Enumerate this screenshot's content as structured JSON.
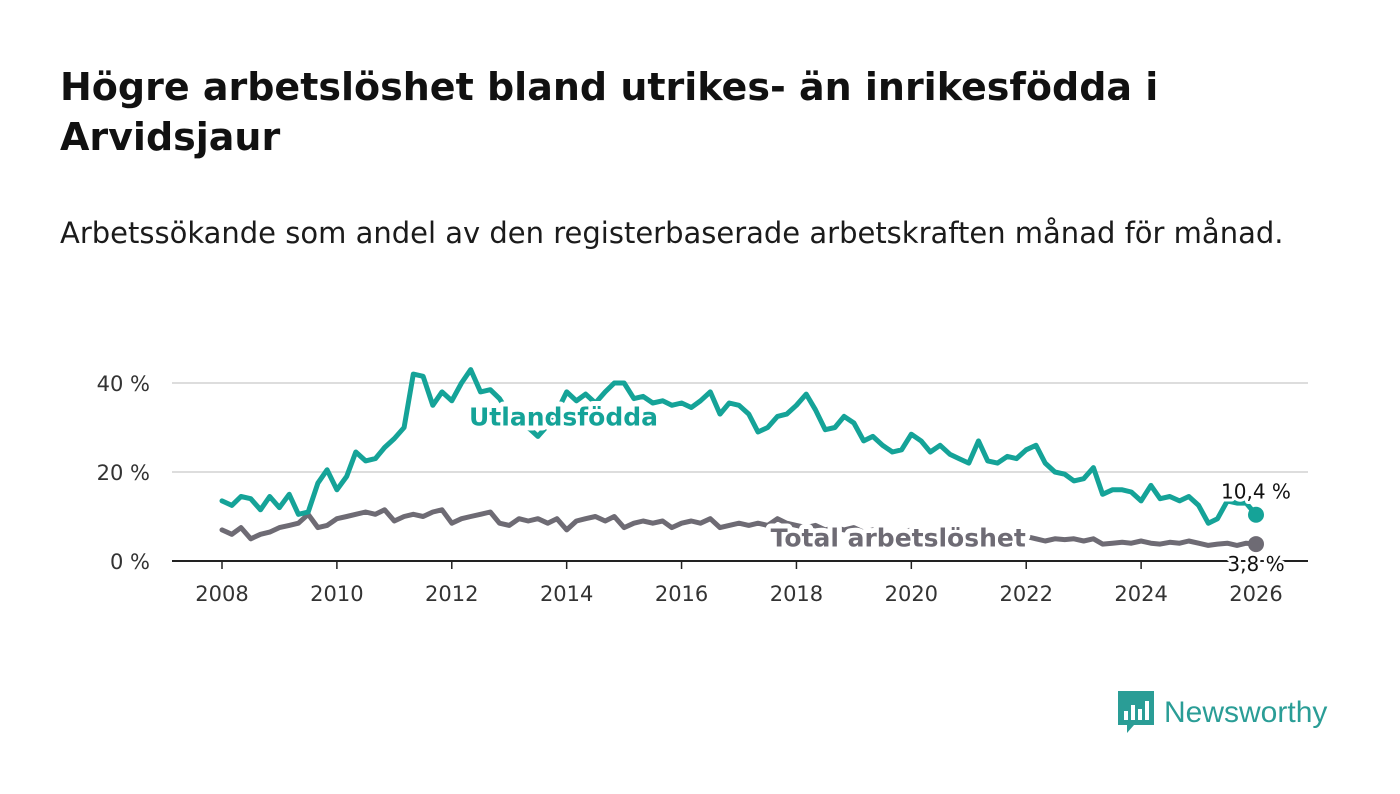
{
  "title": "Högre arbetslöshet bland utrikes- än inrikesfödda i Arvidsjaur",
  "subtitle": "Arbetssökande som andel av den registerbaserade arbetskraften månad för månad.",
  "logo": {
    "text": "Newsworthy",
    "icon": "bar-chart-speech-icon"
  },
  "colors": {
    "foreign": "#15a398",
    "total": "#6e6b74",
    "grid": "#dddddd",
    "axis": "#222222"
  },
  "chart_data": {
    "type": "line",
    "title": "Högre arbetslöshet bland utrikes- än inrikesfödda i Arvidsjaur",
    "xlabel": "",
    "ylabel": "",
    "xlim": [
      2007.5,
      2027.2
    ],
    "ylim": [
      0,
      45
    ],
    "x_ticks": [
      2008,
      2010,
      2012,
      2014,
      2016,
      2018,
      2020,
      2022,
      2024,
      2026
    ],
    "x_tick_labels": [
      "2008",
      "2010",
      "2012",
      "2014",
      "2016",
      "2018",
      "2020",
      "2022",
      "2024",
      "2026"
    ],
    "y_ticks": [
      0,
      20,
      40
    ],
    "y_tick_labels": [
      "0 %",
      "20 %",
      "40 %"
    ],
    "grid": true,
    "series": [
      {
        "name": "Utlandsfödda",
        "label": "Utlandsfödda",
        "color": "#15a398",
        "end_label": "10,4 %",
        "end_value": 10.4,
        "points": [
          [
            2008.0,
            13.5
          ],
          [
            2008.17,
            12.5
          ],
          [
            2008.33,
            14.5
          ],
          [
            2008.5,
            14.0
          ],
          [
            2008.67,
            11.5
          ],
          [
            2008.83,
            14.5
          ],
          [
            2009.0,
            12.0
          ],
          [
            2009.17,
            15.0
          ],
          [
            2009.33,
            10.5
          ],
          [
            2009.5,
            11.0
          ],
          [
            2009.67,
            17.5
          ],
          [
            2009.83,
            20.5
          ],
          [
            2010.0,
            16.0
          ],
          [
            2010.17,
            19.0
          ],
          [
            2010.33,
            24.5
          ],
          [
            2010.5,
            22.5
          ],
          [
            2010.67,
            23.0
          ],
          [
            2010.83,
            25.5
          ],
          [
            2011.0,
            27.5
          ],
          [
            2011.17,
            30.0
          ],
          [
            2011.33,
            42.0
          ],
          [
            2011.5,
            41.5
          ],
          [
            2011.67,
            35.0
          ],
          [
            2011.83,
            38.0
          ],
          [
            2012.0,
            36.0
          ],
          [
            2012.17,
            40.0
          ],
          [
            2012.33,
            43.0
          ],
          [
            2012.5,
            38.0
          ],
          [
            2012.67,
            38.5
          ],
          [
            2012.83,
            36.5
          ],
          [
            2013.0,
            33.0
          ],
          [
            2013.17,
            30.5
          ],
          [
            2013.33,
            30.0
          ],
          [
            2013.5,
            28.0
          ],
          [
            2013.67,
            30.5
          ],
          [
            2013.83,
            33.5
          ],
          [
            2014.0,
            38.0
          ],
          [
            2014.17,
            36.0
          ],
          [
            2014.33,
            37.5
          ],
          [
            2014.5,
            35.5
          ],
          [
            2014.67,
            38.0
          ],
          [
            2014.83,
            40.0
          ],
          [
            2015.0,
            40.0
          ],
          [
            2015.17,
            36.5
          ],
          [
            2015.33,
            37.0
          ],
          [
            2015.5,
            35.5
          ],
          [
            2015.67,
            36.0
          ],
          [
            2015.83,
            35.0
          ],
          [
            2016.0,
            35.5
          ],
          [
            2016.17,
            34.5
          ],
          [
            2016.33,
            36.0
          ],
          [
            2016.5,
            38.0
          ],
          [
            2016.67,
            33.0
          ],
          [
            2016.83,
            35.5
          ],
          [
            2017.0,
            35.0
          ],
          [
            2017.17,
            33.0
          ],
          [
            2017.33,
            29.0
          ],
          [
            2017.5,
            30.0
          ],
          [
            2017.67,
            32.5
          ],
          [
            2017.83,
            33.0
          ],
          [
            2018.0,
            35.0
          ],
          [
            2018.17,
            37.5
          ],
          [
            2018.33,
            34.0
          ],
          [
            2018.5,
            29.5
          ],
          [
            2018.67,
            30.0
          ],
          [
            2018.83,
            32.5
          ],
          [
            2019.0,
            31.0
          ],
          [
            2019.17,
            27.0
          ],
          [
            2019.33,
            28.0
          ],
          [
            2019.5,
            26.0
          ],
          [
            2019.67,
            24.5
          ],
          [
            2019.83,
            25.0
          ],
          [
            2020.0,
            28.5
          ],
          [
            2020.17,
            27.0
          ],
          [
            2020.33,
            24.5
          ],
          [
            2020.5,
            26.0
          ],
          [
            2020.67,
            24.0
          ],
          [
            2020.83,
            23.0
          ],
          [
            2021.0,
            22.0
          ],
          [
            2021.17,
            27.0
          ],
          [
            2021.33,
            22.5
          ],
          [
            2021.5,
            22.0
          ],
          [
            2021.67,
            23.5
          ],
          [
            2021.83,
            23.0
          ],
          [
            2022.0,
            25.0
          ],
          [
            2022.17,
            26.0
          ],
          [
            2022.33,
            22.0
          ],
          [
            2022.5,
            20.0
          ],
          [
            2022.67,
            19.5
          ],
          [
            2022.83,
            18.0
          ],
          [
            2023.0,
            18.5
          ],
          [
            2023.17,
            21.0
          ],
          [
            2023.33,
            15.0
          ],
          [
            2023.5,
            16.0
          ],
          [
            2023.67,
            16.0
          ],
          [
            2023.83,
            15.5
          ],
          [
            2024.0,
            13.5
          ],
          [
            2024.17,
            17.0
          ],
          [
            2024.33,
            14.0
          ],
          [
            2024.5,
            14.5
          ],
          [
            2024.67,
            13.5
          ],
          [
            2024.83,
            14.5
          ],
          [
            2025.0,
            12.5
          ],
          [
            2025.17,
            8.5
          ],
          [
            2025.33,
            9.5
          ],
          [
            2025.5,
            13.5
          ],
          [
            2025.67,
            13.0
          ],
          [
            2025.83,
            13.0
          ],
          [
            2026.0,
            10.4
          ]
        ]
      },
      {
        "name": "Total arbetslöshet",
        "label": "Total arbetslöshet",
        "color": "#6e6b74",
        "end_label": "3,8 %",
        "end_value": 3.8,
        "points": [
          [
            2008.0,
            7.0
          ],
          [
            2008.17,
            6.0
          ],
          [
            2008.33,
            7.5
          ],
          [
            2008.5,
            5.0
          ],
          [
            2008.67,
            6.0
          ],
          [
            2008.83,
            6.5
          ],
          [
            2009.0,
            7.5
          ],
          [
            2009.17,
            8.0
          ],
          [
            2009.33,
            8.5
          ],
          [
            2009.5,
            10.5
          ],
          [
            2009.67,
            7.5
          ],
          [
            2009.83,
            8.0
          ],
          [
            2010.0,
            9.5
          ],
          [
            2010.17,
            10.0
          ],
          [
            2010.33,
            10.5
          ],
          [
            2010.5,
            11.0
          ],
          [
            2010.67,
            10.5
          ],
          [
            2010.83,
            11.5
          ],
          [
            2011.0,
            9.0
          ],
          [
            2011.17,
            10.0
          ],
          [
            2011.33,
            10.5
          ],
          [
            2011.5,
            10.0
          ],
          [
            2011.67,
            11.0
          ],
          [
            2011.83,
            11.5
          ],
          [
            2012.0,
            8.5
          ],
          [
            2012.17,
            9.5
          ],
          [
            2012.33,
            10.0
          ],
          [
            2012.5,
            10.5
          ],
          [
            2012.67,
            11.0
          ],
          [
            2012.83,
            8.5
          ],
          [
            2013.0,
            8.0
          ],
          [
            2013.17,
            9.5
          ],
          [
            2013.33,
            9.0
          ],
          [
            2013.5,
            9.5
          ],
          [
            2013.67,
            8.5
          ],
          [
            2013.83,
            9.5
          ],
          [
            2014.0,
            7.0
          ],
          [
            2014.17,
            9.0
          ],
          [
            2014.33,
            9.5
          ],
          [
            2014.5,
            10.0
          ],
          [
            2014.67,
            9.0
          ],
          [
            2014.83,
            10.0
          ],
          [
            2015.0,
            7.5
          ],
          [
            2015.17,
            8.5
          ],
          [
            2015.33,
            9.0
          ],
          [
            2015.5,
            8.5
          ],
          [
            2015.67,
            9.0
          ],
          [
            2015.83,
            7.5
          ],
          [
            2016.0,
            8.5
          ],
          [
            2016.17,
            9.0
          ],
          [
            2016.33,
            8.5
          ],
          [
            2016.5,
            9.5
          ],
          [
            2016.67,
            7.5
          ],
          [
            2016.83,
            8.0
          ],
          [
            2017.0,
            8.5
          ],
          [
            2017.17,
            8.0
          ],
          [
            2017.33,
            8.5
          ],
          [
            2017.5,
            8.0
          ],
          [
            2017.67,
            9.5
          ],
          [
            2017.83,
            8.5
          ],
          [
            2018.0,
            8.0
          ],
          [
            2018.17,
            7.5
          ],
          [
            2018.33,
            8.0
          ],
          [
            2018.5,
            7.0
          ],
          [
            2018.67,
            7.5
          ],
          [
            2018.83,
            7.0
          ],
          [
            2019.0,
            7.5
          ],
          [
            2019.17,
            6.5
          ],
          [
            2019.33,
            7.0
          ],
          [
            2019.5,
            6.5
          ],
          [
            2019.67,
            6.0
          ],
          [
            2019.83,
            6.5
          ],
          [
            2020.0,
            7.0
          ],
          [
            2020.17,
            6.5
          ],
          [
            2020.33,
            6.0
          ],
          [
            2020.5,
            6.5
          ],
          [
            2020.67,
            6.0
          ],
          [
            2020.83,
            5.5
          ],
          [
            2021.0,
            6.0
          ],
          [
            2021.17,
            6.5
          ],
          [
            2021.33,
            5.5
          ],
          [
            2021.5,
            6.0
          ],
          [
            2021.67,
            5.5
          ],
          [
            2021.83,
            5.0
          ],
          [
            2022.0,
            5.5
          ],
          [
            2022.17,
            5.0
          ],
          [
            2022.33,
            4.5
          ],
          [
            2022.5,
            5.0
          ],
          [
            2022.67,
            4.8
          ],
          [
            2022.83,
            5.0
          ],
          [
            2023.0,
            4.5
          ],
          [
            2023.17,
            5.0
          ],
          [
            2023.33,
            3.8
          ],
          [
            2023.5,
            4.0
          ],
          [
            2023.67,
            4.2
          ],
          [
            2023.83,
            4.0
          ],
          [
            2024.0,
            4.5
          ],
          [
            2024.17,
            4.0
          ],
          [
            2024.33,
            3.8
          ],
          [
            2024.5,
            4.2
          ],
          [
            2024.67,
            4.0
          ],
          [
            2024.83,
            4.5
          ],
          [
            2025.0,
            4.0
          ],
          [
            2025.17,
            3.5
          ],
          [
            2025.33,
            3.8
          ],
          [
            2025.5,
            4.0
          ],
          [
            2025.67,
            3.5
          ],
          [
            2025.83,
            4.0
          ],
          [
            2026.0,
            3.8
          ]
        ]
      }
    ]
  }
}
